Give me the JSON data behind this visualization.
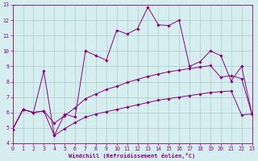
{
  "xlabel": "Windchill (Refroidissement éolien,°C)",
  "bg_color": "#d6eef0",
  "grid_color": "#aacccc",
  "line_color": "#880088",
  "xlim": [
    0,
    23
  ],
  "ylim": [
    4,
    13
  ],
  "xticks": [
    0,
    1,
    2,
    3,
    4,
    5,
    6,
    7,
    8,
    9,
    10,
    11,
    12,
    13,
    14,
    15,
    16,
    17,
    18,
    19,
    20,
    21,
    22,
    23
  ],
  "yticks": [
    4,
    5,
    6,
    7,
    8,
    9,
    10,
    11,
    12,
    13
  ],
  "series1_x": [
    0,
    1,
    2,
    3,
    4,
    5,
    6,
    7,
    8,
    9,
    10,
    11,
    12,
    13,
    14,
    15,
    16,
    17,
    18,
    19,
    20,
    21,
    22,
    23
  ],
  "series1_y": [
    4.9,
    6.2,
    6.0,
    8.7,
    4.5,
    5.9,
    5.7,
    10.0,
    9.7,
    9.4,
    11.35,
    11.1,
    11.45,
    12.85,
    11.7,
    11.65,
    12.0,
    9.0,
    9.3,
    10.0,
    9.7,
    8.05,
    9.0,
    5.9
  ],
  "series2_x": [
    0,
    1,
    2,
    3,
    4,
    5,
    6,
    7,
    8,
    9,
    10,
    11,
    12,
    13,
    14,
    15,
    16,
    17,
    18,
    19,
    20,
    21,
    22,
    23
  ],
  "series2_y": [
    4.9,
    6.2,
    6.0,
    6.1,
    5.3,
    5.8,
    6.3,
    6.9,
    7.2,
    7.5,
    7.7,
    7.95,
    8.15,
    8.35,
    8.5,
    8.65,
    8.75,
    8.85,
    8.95,
    9.05,
    8.3,
    8.4,
    8.2,
    5.9
  ],
  "series3_x": [
    0,
    1,
    2,
    3,
    4,
    5,
    6,
    7,
    8,
    9,
    10,
    11,
    12,
    13,
    14,
    15,
    16,
    17,
    18,
    19,
    20,
    21,
    22,
    23
  ],
  "series3_y": [
    4.9,
    6.2,
    6.0,
    6.1,
    4.5,
    4.95,
    5.35,
    5.7,
    5.9,
    6.05,
    6.2,
    6.35,
    6.5,
    6.65,
    6.8,
    6.9,
    7.0,
    7.1,
    7.2,
    7.3,
    7.35,
    7.4,
    5.85,
    5.9
  ]
}
